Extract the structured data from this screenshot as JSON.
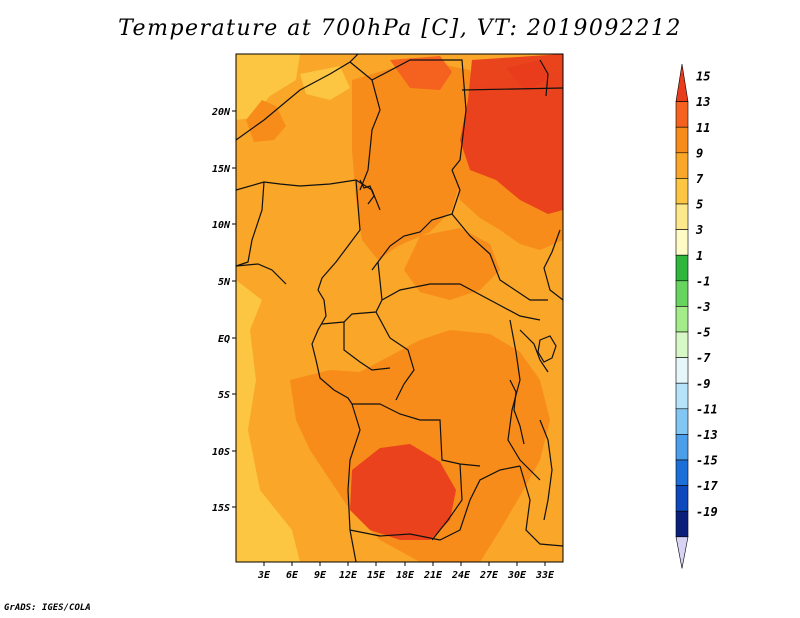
{
  "title": "Temperature at 700hPa [C], VT: 2019092212",
  "footer": "GrADS: IGES/COLA",
  "map": {
    "lat_labels": [
      "20N",
      "15N",
      "10N",
      "5N",
      "EQ",
      "5S",
      "10S",
      "15S"
    ],
    "lon_labels": [
      "3E",
      "6E",
      "9E",
      "12E",
      "15E",
      "18E",
      "21E",
      "24E",
      "27E",
      "30E",
      "33E"
    ]
  },
  "colorbar": {
    "labels": [
      "15",
      "13",
      "11",
      "9",
      "7",
      "5",
      "3",
      "1",
      "-1",
      "-3",
      "-5",
      "-7",
      "-9",
      "-11",
      "-13",
      "-15",
      "-17",
      "-19"
    ],
    "colors": [
      "#e83c1c",
      "#f5611e",
      "#f78c1a",
      "#f9a629",
      "#fcc542",
      "#fde98c",
      "#fffac6",
      "#2fb63d",
      "#67d45f",
      "#a4ec8a",
      "#d7f8c6",
      "#e7f6f9",
      "#b6e2fa",
      "#82c6f3",
      "#4b9ee9",
      "#1c6fd8",
      "#0d49bd",
      "#0a1f7a",
      "#d8d2f5"
    ]
  }
}
